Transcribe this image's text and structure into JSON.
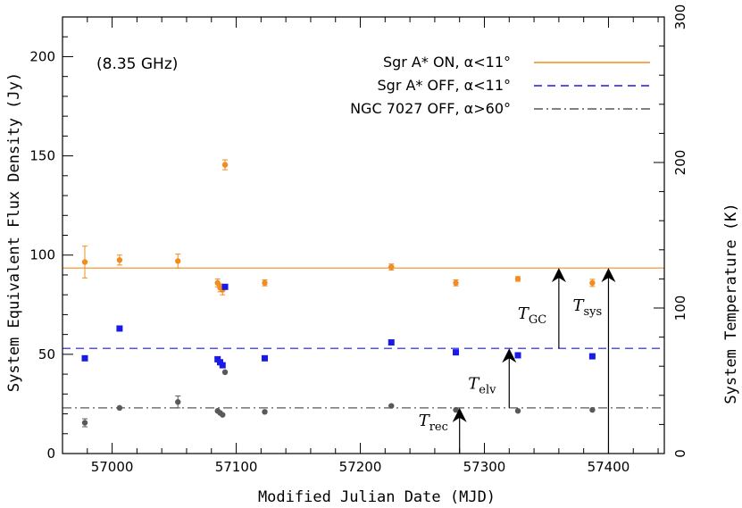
{
  "chart_data": {
    "type": "scatter",
    "xlabel": "Modified Julian Date (MJD)",
    "ylabel": "System Equivalent Flux Density (Jy)",
    "y2label": "System Temperature (K)",
    "xlim": [
      56960,
      57445
    ],
    "ylim": [
      0,
      220
    ],
    "y2lim": [
      0,
      300
    ],
    "xticks": [
      57000,
      57100,
      57200,
      57300,
      57400
    ],
    "yticks": [
      0,
      50,
      100,
      150,
      200
    ],
    "y2ticks": [
      0,
      100,
      200,
      300
    ],
    "frequency_label": "(8.35 GHz)",
    "legend_position": "top-right",
    "series": [
      {
        "name": "Sgr A* ON, α<11°",
        "color": "#f28c1e",
        "marker": "circle",
        "line_style": "solid",
        "level": 93.5,
        "points": [
          {
            "x": 56978,
            "y": 96.5,
            "err": 8
          },
          {
            "x": 57006,
            "y": 97.5,
            "err": 2.5
          },
          {
            "x": 57053,
            "y": 97,
            "err": 3.5
          },
          {
            "x": 57085,
            "y": 86,
            "err": 2
          },
          {
            "x": 57087,
            "y": 83.5,
            "err": 2
          },
          {
            "x": 57089,
            "y": 82.5,
            "err": 2.5
          },
          {
            "x": 57091,
            "y": 145.5,
            "err": 2.5
          },
          {
            "x": 57123,
            "y": 86,
            "err": 1.5
          },
          {
            "x": 57225,
            "y": 94,
            "err": 1.5
          },
          {
            "x": 57277,
            "y": 86,
            "err": 1.5
          },
          {
            "x": 57327,
            "y": 88,
            "err": 1.2
          },
          {
            "x": 57387,
            "y": 86,
            "err": 1.8
          }
        ]
      },
      {
        "name": "Sgr A* OFF, α<11°",
        "color": "#1a1ae6",
        "marker": "square",
        "line_style": "dashed",
        "level": 53,
        "points": [
          {
            "x": 56978,
            "y": 48,
            "err": 1
          },
          {
            "x": 57006,
            "y": 63,
            "err": 0.5
          },
          {
            "x": 57085,
            "y": 47.5,
            "err": 0.5
          },
          {
            "x": 57087,
            "y": 46,
            "err": 0.5
          },
          {
            "x": 57089,
            "y": 44.5,
            "err": 0.5
          },
          {
            "x": 57091,
            "y": 84,
            "err": 1
          },
          {
            "x": 57123,
            "y": 48,
            "err": 0.5
          },
          {
            "x": 57225,
            "y": 56,
            "err": 0.5
          },
          {
            "x": 57277,
            "y": 51,
            "err": 0.5
          },
          {
            "x": 57327,
            "y": 49.5,
            "err": 0.5
          },
          {
            "x": 57387,
            "y": 49,
            "err": 0.5
          }
        ]
      },
      {
        "name": "NGC 7027 OFF, α>60°",
        "color": "#595959",
        "marker": "circle",
        "line_style": "dashdot",
        "level": 23,
        "points": [
          {
            "x": 56978,
            "y": 15.5,
            "err": 2
          },
          {
            "x": 57006,
            "y": 23,
            "err": 0.5
          },
          {
            "x": 57053,
            "y": 26,
            "err": 3
          },
          {
            "x": 57085,
            "y": 21.5,
            "err": 0.5
          },
          {
            "x": 57087,
            "y": 20.5,
            "err": 0.5
          },
          {
            "x": 57089,
            "y": 19.5,
            "err": 0.5
          },
          {
            "x": 57091,
            "y": 41,
            "err": 0.5
          },
          {
            "x": 57123,
            "y": 21,
            "err": 0.5
          },
          {
            "x": 57225,
            "y": 24,
            "err": 0.5
          },
          {
            "x": 57277,
            "y": 22,
            "err": 0.5
          },
          {
            "x": 57327,
            "y": 21.5,
            "err": 0.5
          },
          {
            "x": 57387,
            "y": 22,
            "err": 0.5
          }
        ]
      }
    ],
    "annotations": [
      {
        "label": "T",
        "sub": "rec",
        "x": 57280,
        "y_from": 0,
        "y_to": 23
      },
      {
        "label": "T",
        "sub": "elv",
        "x": 57320,
        "y_from": 23,
        "y_to": 53
      },
      {
        "label": "T",
        "sub": "GC",
        "x": 57360,
        "y_from": 53,
        "y_to": 93.5
      },
      {
        "label": "T",
        "sub": "sys",
        "x": 57400,
        "y_from": 0,
        "y_to": 93.5
      }
    ]
  }
}
